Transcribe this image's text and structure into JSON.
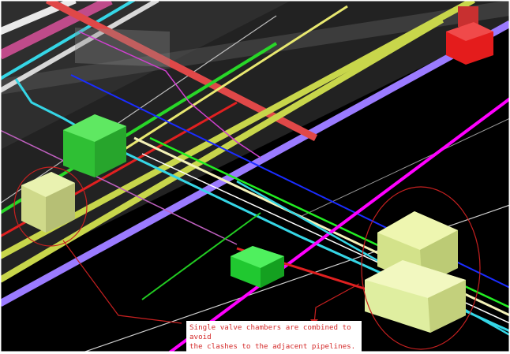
{
  "viewport": {
    "background": "#000000",
    "frame": "#ffffff"
  },
  "annotation": {
    "line1": "Single valve chambers are combined to avoid",
    "line2": "the clashes to the adjacent pipelines.",
    "color": "#d42a2a"
  },
  "objects": {
    "pipes": [
      {
        "name": "magenta-pipe",
        "color": "#ff00ff"
      },
      {
        "name": "purple-pipe",
        "color": "#9b7bff"
      },
      {
        "name": "yellow-green-pipe",
        "color": "#c8d64b"
      },
      {
        "name": "cyan-pipe",
        "color": "#35d6e6"
      },
      {
        "name": "green-pipe",
        "color": "#22ee22"
      },
      {
        "name": "red-pipe",
        "color": "#e02020"
      },
      {
        "name": "blue-pipe",
        "color": "#1a2cff"
      },
      {
        "name": "cream-pipe",
        "color": "#f4f2b8"
      }
    ],
    "chambers": [
      {
        "name": "valve-chamber-left",
        "color": "#e6f0a0"
      },
      {
        "name": "valve-chamber-green-upper",
        "color": "#32d93c"
      },
      {
        "name": "valve-chamber-green-small",
        "color": "#28e03a"
      },
      {
        "name": "combined-valve-chamber",
        "color": "#e6f59a"
      },
      {
        "name": "red-fitting",
        "color": "#ee1c1c"
      }
    ],
    "highlight_circle_color": "#c62020"
  }
}
